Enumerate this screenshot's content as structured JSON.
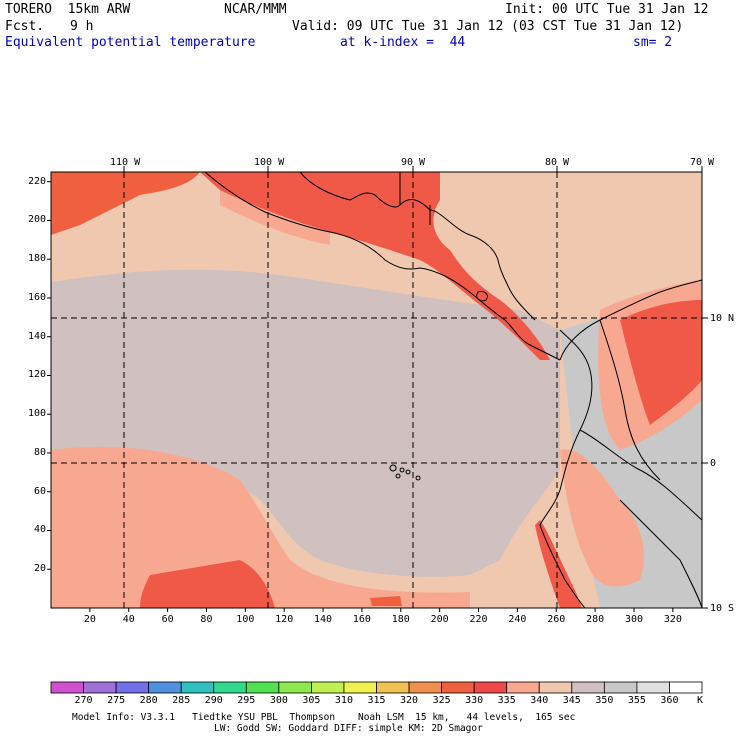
{
  "header": {
    "model": "TORERO  15km ARW",
    "center": "NCAR/MMM",
    "init": "Init: 00 UTC Tue 31 Jan 12",
    "fcst_label": "Fcst.",
    "fcst_hours": "9 h",
    "valid": "Valid: 09 UTC Tue 31 Jan 12 (03 CST Tue 31 Jan 12)",
    "field": "Equivalent potential temperature",
    "level": "at k-index =  44",
    "smoothing": "sm= 2"
  },
  "map": {
    "lon_labels": [
      "110 W",
      "100 W",
      "90 W",
      "80 W",
      "70 W"
    ],
    "lat_labels": [
      "10 N",
      "0",
      "10 S"
    ],
    "y_ticks": [
      "220",
      "200",
      "180",
      "160",
      "140",
      "120",
      "100",
      "80",
      "60",
      "40",
      "20"
    ],
    "x_ticks": [
      "20",
      "40",
      "60",
      "80",
      "100",
      "120",
      "140",
      "160",
      "180",
      "200",
      "220",
      "240",
      "260",
      "280",
      "300",
      "320"
    ],
    "grid_points_x": 335,
    "grid_points_y": 225
  },
  "colorbar": {
    "levels": [
      "270",
      "275",
      "280",
      "285",
      "290",
      "295",
      "300",
      "305",
      "310",
      "315",
      "320",
      "325",
      "330",
      "335",
      "340",
      "345",
      "350",
      "355",
      "360"
    ],
    "unit": "K",
    "colors": [
      "#d050d0",
      "#a070d8",
      "#7070e8",
      "#5090e0",
      "#30c0c0",
      "#30d890",
      "#50e050",
      "#90e850",
      "#c0f050",
      "#f0f050",
      "#f0c050",
      "#f09050",
      "#f06040",
      "#f04848",
      "#f8a890",
      "#f0c8b0",
      "#d0c0c0",
      "#c8c8c8",
      "#e0e0e0",
      "#ffffff"
    ]
  },
  "footer": {
    "line1": "Model Info: V3.3.1   Tiedtke YSU PBL  Thompson    Noah LSM  15 km,   44 levels,  165 sec",
    "line2": "LW: Godd SW: Goddard DIFF: simple KM: 2D Smagor"
  }
}
